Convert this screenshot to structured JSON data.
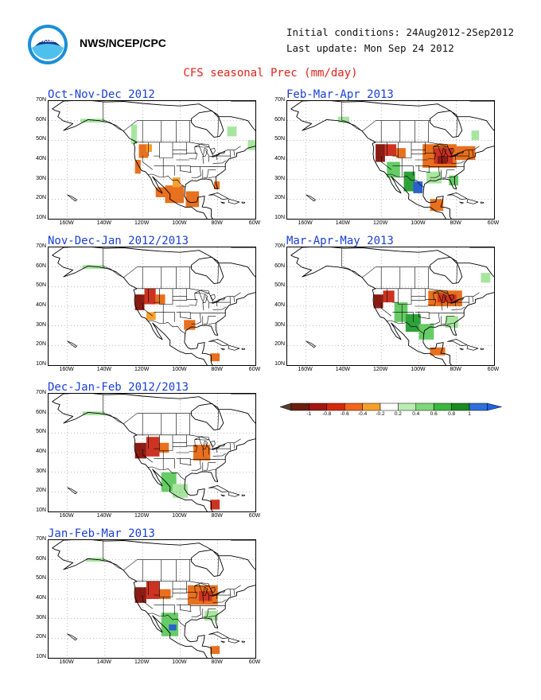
{
  "header": {
    "agency": "NWS/NCEP/CPC",
    "initial_conditions": "Initial conditions: 24Aug2012-2Sep2012",
    "last_update": "Last update: Mon Sep 24 2012",
    "title": "CFS seasonal Prec (mm/day)"
  },
  "axes": {
    "lat_labels": [
      "70N",
      "60N",
      "50N",
      "40N",
      "30N",
      "20N",
      "10N"
    ],
    "lon_labels": [
      "160W",
      "140W",
      "120W",
      "100W",
      "80W",
      "60W"
    ]
  },
  "panels": [
    {
      "id": "ond",
      "title": "Oct-Nov-Dec 2012",
      "icon": "precip-anomaly-map"
    },
    {
      "id": "fma",
      "title": "Feb-Mar-Apr 2013",
      "icon": "precip-anomaly-map"
    },
    {
      "id": "ndj",
      "title": "Nov-Dec-Jan 2012/2013",
      "icon": "precip-anomaly-map"
    },
    {
      "id": "mam",
      "title": "Mar-Apr-May 2013",
      "icon": "precip-anomaly-map"
    },
    {
      "id": "djf",
      "title": "Dec-Jan-Feb 2012/2013",
      "icon": "precip-anomaly-map"
    },
    {
      "id": "jfm",
      "title": "Jan-Feb-Mar 2013",
      "icon": "precip-anomaly-map"
    }
  ],
  "colorbar": {
    "labels": [
      "-1",
      "-0.8",
      "-0.6",
      "-0.4",
      "-0.2",
      "0.2",
      "0.4",
      "0.6",
      "0.8",
      "1"
    ],
    "colors": [
      "#6b1d0e",
      "#a01810",
      "#d42a0c",
      "#f0661a",
      "#f59f2a",
      "#ffffff",
      "#b9eeb0",
      "#7fd87a",
      "#3bb83e",
      "#1a8a22",
      "#2f6fd8"
    ],
    "end_low_color": "#5a3a2a",
    "end_high_color": "#1e62e0"
  },
  "colors": {
    "dry_strong": "#8a1a12",
    "dry": "#cc3322",
    "dry_mod": "#e8701e",
    "dry_weak": "#f5a030",
    "wet_weak": "#a8e6a0",
    "wet": "#66cc66",
    "wet_strong": "#2ea23a",
    "very_wet": "#2a60d0",
    "title_blue": "#1a3fd6",
    "title_red": "#e0241b"
  }
}
